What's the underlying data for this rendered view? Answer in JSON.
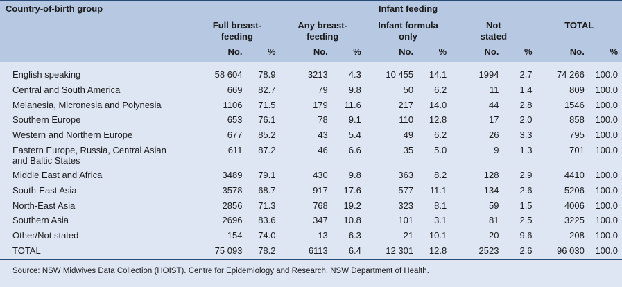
{
  "header": {
    "row_group_label": "Country-of-birth group",
    "column_group_label": "Infant feeding",
    "groups": [
      "Full breast-\nfeeding",
      "Any breast-\nfeeding",
      "Infant formula\nonly",
      "Not\nstated",
      "TOTAL"
    ],
    "sub_no": "No.",
    "sub_pct": "%"
  },
  "rows": [
    {
      "label": "English speaking",
      "v": [
        "58 604",
        "78.9",
        "3213",
        "4.3",
        "10 455",
        "14.1",
        "1994",
        "2.7",
        "74 266",
        "100.0"
      ]
    },
    {
      "label": "Central and South America",
      "v": [
        "669",
        "82.7",
        "79",
        "9.8",
        "50",
        "6.2",
        "11",
        "1.4",
        "809",
        "100.0"
      ]
    },
    {
      "label": "Melanesia, Micronesia and Polynesia",
      "v": [
        "1106",
        "71.5",
        "179",
        "11.6",
        "217",
        "14.0",
        "44",
        "2.8",
        "1546",
        "100.0"
      ]
    },
    {
      "label": "Southern Europe",
      "v": [
        "653",
        "76.1",
        "78",
        "9.1",
        "110",
        "12.8",
        "17",
        "2.0",
        "858",
        "100.0"
      ]
    },
    {
      "label": "Western and Northern Europe",
      "v": [
        "677",
        "85.2",
        "43",
        "5.4",
        "49",
        "6.2",
        "26",
        "3.3",
        "795",
        "100.0"
      ]
    },
    {
      "label": "Eastern Europe, Russia, Central Asian\nand Baltic States",
      "v": [
        "611",
        "87.2",
        "46",
        "6.6",
        "35",
        "5.0",
        "9",
        "1.3",
        "701",
        "100.0"
      ]
    },
    {
      "label": "Middle East and Africa",
      "v": [
        "3489",
        "79.1",
        "430",
        "9.8",
        "363",
        "8.2",
        "128",
        "2.9",
        "4410",
        "100.0"
      ]
    },
    {
      "label": "South-East Asia",
      "v": [
        "3578",
        "68.7",
        "917",
        "17.6",
        "577",
        "11.1",
        "134",
        "2.6",
        "5206",
        "100.0"
      ]
    },
    {
      "label": "North-East Asia",
      "v": [
        "2856",
        "71.3",
        "768",
        "19.2",
        "323",
        "8.1",
        "59",
        "1.5",
        "4006",
        "100.0"
      ]
    },
    {
      "label": "Southern Asia",
      "v": [
        "2696",
        "83.6",
        "347",
        "10.8",
        "101",
        "3.1",
        "81",
        "2.5",
        "3225",
        "100.0"
      ]
    },
    {
      "label": "Other/Not stated",
      "v": [
        "154",
        "74.0",
        "13",
        "6.3",
        "21",
        "10.1",
        "20",
        "9.6",
        "208",
        "100.0"
      ]
    },
    {
      "label": "TOTAL",
      "v": [
        "75 093",
        "78.2",
        "6113",
        "6.4",
        "12 301",
        "12.8",
        "2523",
        "2.6",
        "96 030",
        "100.0"
      ]
    }
  ],
  "source": "Source: NSW Midwives Data Collection (HOIST). Centre for Epidemiology and Research, NSW Department of Health.",
  "colors": {
    "header_band": "#b7c8e3",
    "body_bg": "#dfe6f3",
    "rule": "#2a4a7a"
  }
}
